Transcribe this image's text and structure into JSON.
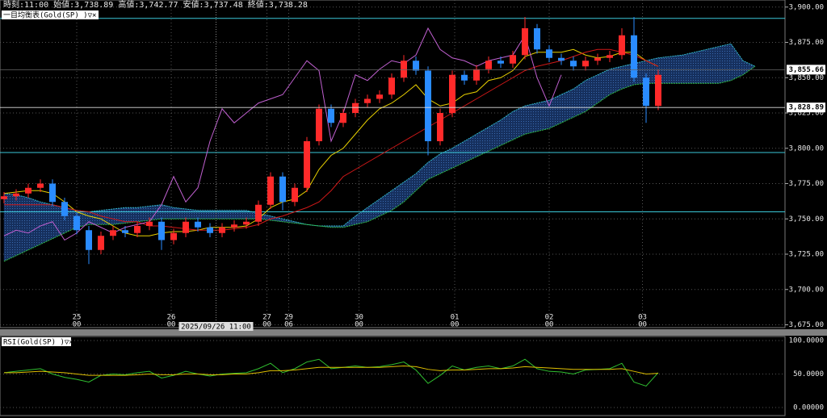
{
  "chart_data": [
    {
      "type": "candlestick",
      "header": "時刻:11:00 始値:3,738.89 高値:3,742.77 安値:3,737.48 終値:3,738.28",
      "indicator_title": "一目均衡表(Gold(SP) )▽×",
      "up_color": "#ff2a2a",
      "down_color": "#2a8cff",
      "open": [
        3764,
        3766,
        3768,
        3772,
        3775,
        3762,
        3752,
        3742,
        3728,
        3738,
        3742,
        3740,
        3745,
        3748,
        3735,
        3740,
        3748,
        3744,
        3740,
        3744,
        3746,
        3748,
        3760,
        3780,
        3762,
        3772,
        3805,
        3828,
        3818,
        3825,
        3832,
        3835,
        3838,
        3850,
        3862,
        3855,
        3805,
        3825,
        3852,
        3848,
        3856,
        3862,
        3860,
        3866,
        3885,
        3870,
        3864,
        3862,
        3858,
        3862,
        3864,
        3866,
        3880,
        3850,
        3830
      ],
      "high": [
        3769,
        3771,
        3775,
        3778,
        3778,
        3765,
        3755,
        3745,
        3741,
        3745,
        3745,
        3748,
        3751,
        3751,
        3743,
        3751,
        3751,
        3747,
        3747,
        3749,
        3751,
        3763,
        3783,
        3783,
        3775,
        3808,
        3831,
        3831,
        3828,
        3835,
        3838,
        3841,
        3853,
        3866,
        3865,
        3858,
        3828,
        3855,
        3855,
        3859,
        3865,
        3865,
        3869,
        3893,
        3888,
        3873,
        3867,
        3865,
        3865,
        3867,
        3869,
        3885,
        3893,
        3853,
        3856
      ],
      "low": [
        3761,
        3763,
        3765,
        3769,
        3759,
        3749,
        3739,
        3718,
        3725,
        3735,
        3737,
        3737,
        3742,
        3728,
        3732,
        3737,
        3741,
        3737,
        3737,
        3741,
        3743,
        3745,
        3757,
        3756,
        3759,
        3769,
        3802,
        3815,
        3815,
        3822,
        3829,
        3832,
        3835,
        3847,
        3852,
        3795,
        3802,
        3822,
        3845,
        3845,
        3853,
        3857,
        3857,
        3863,
        3867,
        3861,
        3859,
        3855,
        3855,
        3859,
        3861,
        3863,
        3847,
        3818,
        3827
      ],
      "close": [
        3766,
        3768,
        3772,
        3775,
        3762,
        3752,
        3742,
        3728,
        3738,
        3742,
        3740,
        3745,
        3748,
        3735,
        3740,
        3748,
        3744,
        3740,
        3744,
        3746,
        3748,
        3760,
        3780,
        3762,
        3772,
        3805,
        3828,
        3818,
        3825,
        3832,
        3835,
        3838,
        3850,
        3862,
        3855,
        3805,
        3825,
        3852,
        3848,
        3856,
        3862,
        3860,
        3866,
        3885,
        3870,
        3864,
        3862,
        3858,
        3862,
        3864,
        3866,
        3880,
        3850,
        3830,
        3852
      ],
      "series": [
        {
          "color": "#e8d000",
          "values": [
            3768,
            3769,
            3770,
            3770,
            3768,
            3762,
            3755,
            3752,
            3750,
            3745,
            3740,
            3738,
            3738,
            3740,
            3741,
            3741,
            3742,
            3744,
            3744,
            3744,
            3745,
            3750,
            3758,
            3762,
            3764,
            3770,
            3785,
            3795,
            3800,
            3810,
            3820,
            3828,
            3832,
            3838,
            3845,
            3835,
            3830,
            3832,
            3838,
            3840,
            3848,
            3850,
            3855,
            3865,
            3868,
            3868,
            3868,
            3870,
            3866,
            3864,
            3865,
            3868,
            3868,
            3862,
            3858
          ]
        },
        {
          "color": "#d01818",
          "values": [
            3760,
            3760,
            3760,
            3760,
            3760,
            3758,
            3756,
            3755,
            3752,
            3750,
            3748,
            3748,
            3745,
            3745,
            3744,
            3743,
            3742,
            3742,
            3742,
            3743,
            3744,
            3746,
            3750,
            3752,
            3755,
            3758,
            3762,
            3770,
            3780,
            3785,
            3790,
            3795,
            3800,
            3805,
            3810,
            3815,
            3820,
            3825,
            3830,
            3835,
            3840,
            3845,
            3850,
            3855,
            3858,
            3860,
            3862,
            3865,
            3868,
            3870,
            3870,
            3868,
            3866,
            3862,
            3858
          ]
        },
        {
          "color": "#c060d0",
          "values": [
            3738,
            3742,
            3740,
            3745,
            3748,
            3735,
            3740,
            3748,
            3744,
            3740,
            3744,
            3746,
            3748,
            3760,
            3780,
            3762,
            3772,
            3805,
            3828,
            3818,
            3825,
            3832,
            3835,
            3838,
            3850,
            3862,
            3855,
            3805,
            3825,
            3852,
            3848,
            3856,
            3862,
            3860,
            3866,
            3885,
            3870,
            3864,
            3862,
            3858,
            3862,
            3864,
            3866,
            3880,
            3850,
            3830,
            3852
          ]
        }
      ],
      "span_a": {
        "color": "#30b8c8",
        "values": [
          3768,
          3767,
          3765,
          3762,
          3760,
          3758,
          3756,
          3755,
          3756,
          3757,
          3758,
          3758,
          3759,
          3760,
          3758,
          3757,
          3756,
          3756,
          3756,
          3756,
          3756,
          3754,
          3752,
          3750,
          3748,
          3746,
          3745,
          3745,
          3745,
          3752,
          3758,
          3764,
          3770,
          3776,
          3782,
          3790,
          3796,
          3800,
          3805,
          3810,
          3815,
          3820,
          3826,
          3830,
          3832,
          3834,
          3838,
          3842,
          3848,
          3852,
          3856,
          3858,
          3860,
          3862,
          3864,
          3865,
          3866,
          3868,
          3870,
          3872,
          3874,
          3862,
          3858
        ]
      },
      "span_b": {
        "color": "#30c040",
        "values": [
          3720,
          3724,
          3728,
          3732,
          3736,
          3740,
          3744,
          3746,
          3746,
          3746,
          3747,
          3748,
          3749,
          3750,
          3750,
          3750,
          3750,
          3750,
          3750,
          3750,
          3750,
          3750,
          3749,
          3748,
          3747,
          3746,
          3745,
          3744,
          3744,
          3746,
          3748,
          3752,
          3756,
          3762,
          3770,
          3778,
          3782,
          3786,
          3790,
          3794,
          3798,
          3802,
          3806,
          3810,
          3812,
          3814,
          3818,
          3822,
          3826,
          3832,
          3838,
          3842,
          3845,
          3846,
          3846,
          3846,
          3846,
          3846,
          3846,
          3846,
          3848,
          3852,
          3858
        ]
      },
      "cloud_color": "#16305e",
      "hlines": [
        3892,
        3797,
        3755
      ],
      "hline_color": "#3ac8d8",
      "price_labels": [
        {
          "value": 3855.66,
          "label": "3,855.66"
        },
        {
          "value": 3828.89,
          "label": "3,828.89"
        }
      ],
      "crosshair": {
        "index": 17.5,
        "label": "2025/09/26 11:00"
      },
      "ylim": [
        3673,
        3905
      ],
      "yticks": [
        {
          "value": 3900,
          "label": "3,900.00"
        },
        {
          "value": 3875,
          "label": "3,875.00"
        },
        {
          "value": 3850,
          "label": "3,850.00"
        },
        {
          "value": 3825,
          "label": "3,825.00"
        },
        {
          "value": 3800,
          "label": "3,800.00"
        },
        {
          "value": 3775,
          "label": "3,775.00"
        },
        {
          "value": 3750,
          "label": "3,750.00"
        },
        {
          "value": 3725,
          "label": "3,725.00"
        },
        {
          "value": 3700,
          "label": "3,700.00"
        },
        {
          "value": 3675,
          "label": "3,675.00"
        }
      ],
      "xticks": [
        {
          "value": 6,
          "day": "25",
          "hour": "00"
        },
        {
          "value": 13.8,
          "day": "26",
          "hour": "00"
        },
        {
          "value": 21.7,
          "day": "27",
          "hour": "00"
        },
        {
          "value": 23.5,
          "day": "29",
          "hour": "06"
        },
        {
          "value": 29.3,
          "day": "30",
          "hour": "00"
        },
        {
          "value": 37.2,
          "day": "01",
          "hour": "00"
        },
        {
          "value": 45,
          "day": "02",
          "hour": "00"
        },
        {
          "value": 52.7,
          "day": "03",
          "hour": "00"
        }
      ],
      "grid": true
    },
    {
      "type": "line",
      "indicator_title": "RSI(Gold(SP) )▽×",
      "series": [
        {
          "color": "#30c030",
          "values": [
            52,
            54,
            56,
            58,
            50,
            45,
            42,
            38,
            48,
            50,
            49,
            52,
            54,
            44,
            48,
            54,
            50,
            47,
            50,
            51,
            52,
            58,
            66,
            52,
            58,
            68,
            72,
            58,
            60,
            62,
            60,
            61,
            64,
            68,
            56,
            36,
            48,
            62,
            56,
            60,
            62,
            58,
            62,
            72,
            58,
            54,
            53,
            50,
            56,
            57,
            58,
            66,
            38,
            32,
            52
          ]
        },
        {
          "color": "#e0c000",
          "values": [
            52,
            52,
            53,
            54,
            53,
            52,
            50,
            48,
            48,
            48,
            48,
            49,
            50,
            49,
            49,
            50,
            50,
            49,
            49,
            50,
            50,
            52,
            55,
            55,
            56,
            58,
            60,
            60,
            60,
            60,
            60,
            60,
            61,
            62,
            61,
            57,
            55,
            56,
            56,
            57,
            58,
            58,
            59,
            61,
            60,
            59,
            58,
            57,
            57,
            57,
            57,
            58,
            54,
            50,
            51
          ]
        }
      ],
      "ylim": [
        0,
        100
      ],
      "yticks": [
        {
          "value": 100,
          "label": "100.0000"
        },
        {
          "value": 50,
          "label": "50.0000"
        },
        {
          "value": 0,
          "label": "0.00000"
        }
      ],
      "grid": true
    }
  ]
}
